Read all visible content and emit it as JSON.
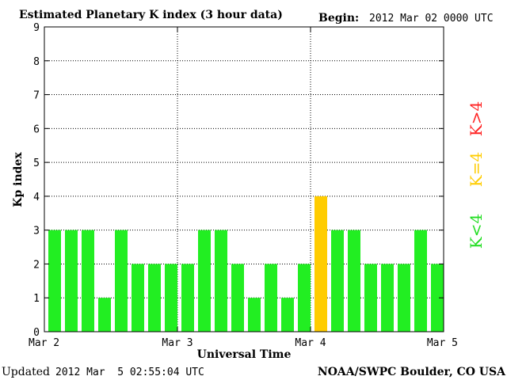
{
  "header": {
    "title": "Estimated Planetary K index (3 hour data)",
    "begin_label": "Begin:",
    "begin_value": "2012 Mar 02 0000 UTC"
  },
  "footer": {
    "updated_label": "Updated",
    "updated_value": "2012 Mar  5 02:55:04 UTC",
    "source": "NOAA/SWPC Boulder, CO USA"
  },
  "legend": {
    "low": {
      "text": "K<4",
      "color": "#22dd22"
    },
    "mid": {
      "text": "K=4",
      "color": "#ffcc00"
    },
    "high": {
      "text": "K>4",
      "color": "#ff2222"
    }
  },
  "chart_data": {
    "type": "bar",
    "xlabel": "Universal Time",
    "ylabel": "Kp index",
    "ylim": [
      0,
      9
    ],
    "yticks": [
      0,
      1,
      2,
      3,
      4,
      5,
      6,
      7,
      8,
      9
    ],
    "xticks": [
      "Mar 2",
      "Mar 3",
      "Mar 4",
      "Mar 5"
    ],
    "grid": true,
    "bar_interval_hours": 3,
    "values": [
      3,
      3,
      3,
      1,
      3,
      2,
      2,
      2,
      2,
      3,
      3,
      2,
      1,
      2,
      1,
      2,
      4,
      3,
      3,
      2,
      2,
      2,
      3,
      2
    ],
    "colors": {
      "below_4": "#22ee22",
      "equal_4": "#ffcc00",
      "above_4": "#ff2222"
    }
  }
}
